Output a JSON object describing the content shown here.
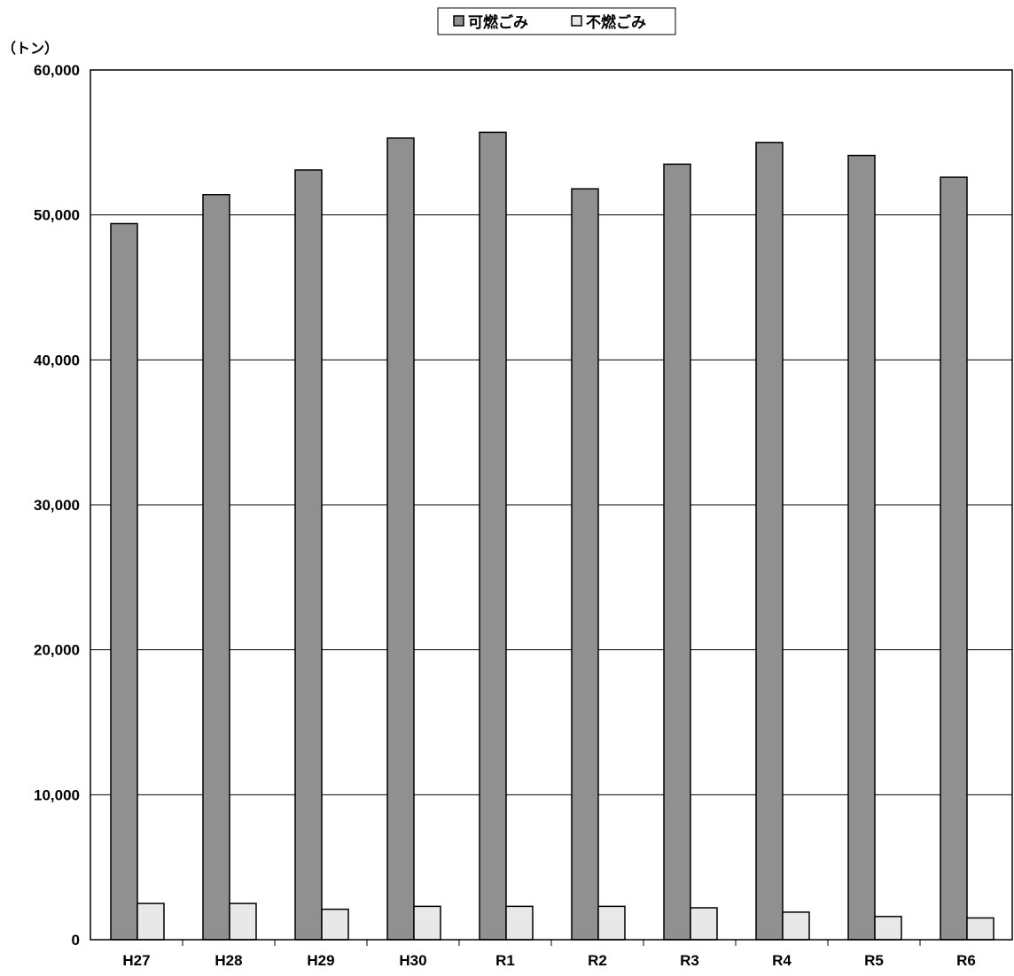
{
  "chart_data": {
    "type": "bar",
    "y_unit_label": "（トン）",
    "categories": [
      "H27",
      "H28",
      "H29",
      "H30",
      "R1",
      "R2",
      "R3",
      "R4",
      "R5",
      "R6"
    ],
    "series": [
      {
        "name": "可燃ごみ",
        "color": "#909090",
        "values": [
          49400,
          51400,
          53100,
          55300,
          55700,
          51800,
          53500,
          55000,
          54100,
          52600
        ]
      },
      {
        "name": "不燃ごみ",
        "color": "#e8e8e8",
        "values": [
          2500,
          2500,
          2100,
          2300,
          2300,
          2300,
          2200,
          1900,
          1600,
          1500
        ]
      }
    ],
    "ylim": [
      0,
      60000
    ],
    "y_ticks": [
      0,
      10000,
      20000,
      30000,
      40000,
      50000,
      60000
    ],
    "y_tick_labels": [
      "0",
      "10,000",
      "20,000",
      "30,000",
      "40,000",
      "50,000",
      "60,000"
    ],
    "grid": true,
    "legend_position": "top-center"
  }
}
